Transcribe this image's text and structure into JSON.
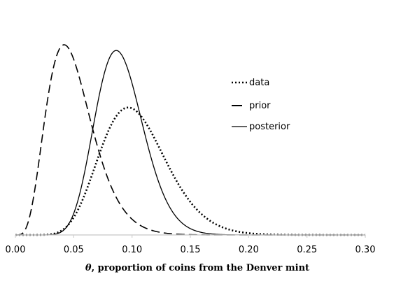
{
  "chart_data": {
    "type": "line",
    "title": "",
    "xlabel": {
      "symbol": "θ",
      "text": ", proportion of coins from the Denver mint"
    },
    "ylabel": "",
    "xlim": [
      0,
      0.3
    ],
    "x_ticks": [
      "0.00",
      "0.05",
      "0.10",
      "0.15",
      "0.20",
      "0.25",
      "0.30"
    ],
    "y_axis_visible": false,
    "grid": false,
    "legend_position": "right",
    "series": [
      {
        "name": "data",
        "style": "dotted",
        "peak_x": 0.105,
        "peak_relative_height": 0.67,
        "shape": {
          "alpha": 11.5,
          "beta": 99
        }
      },
      {
        "name": "prior",
        "style": "dashed",
        "peak_x": 0.043,
        "peak_relative_height": 1.0,
        "shape": {
          "alpha": 5.4,
          "beta": 102
        }
      },
      {
        "name": "posterior",
        "style": "solid",
        "peak_x": 0.087,
        "peak_relative_height": 0.97,
        "shape": {
          "alpha": 17,
          "beta": 170
        }
      }
    ]
  }
}
